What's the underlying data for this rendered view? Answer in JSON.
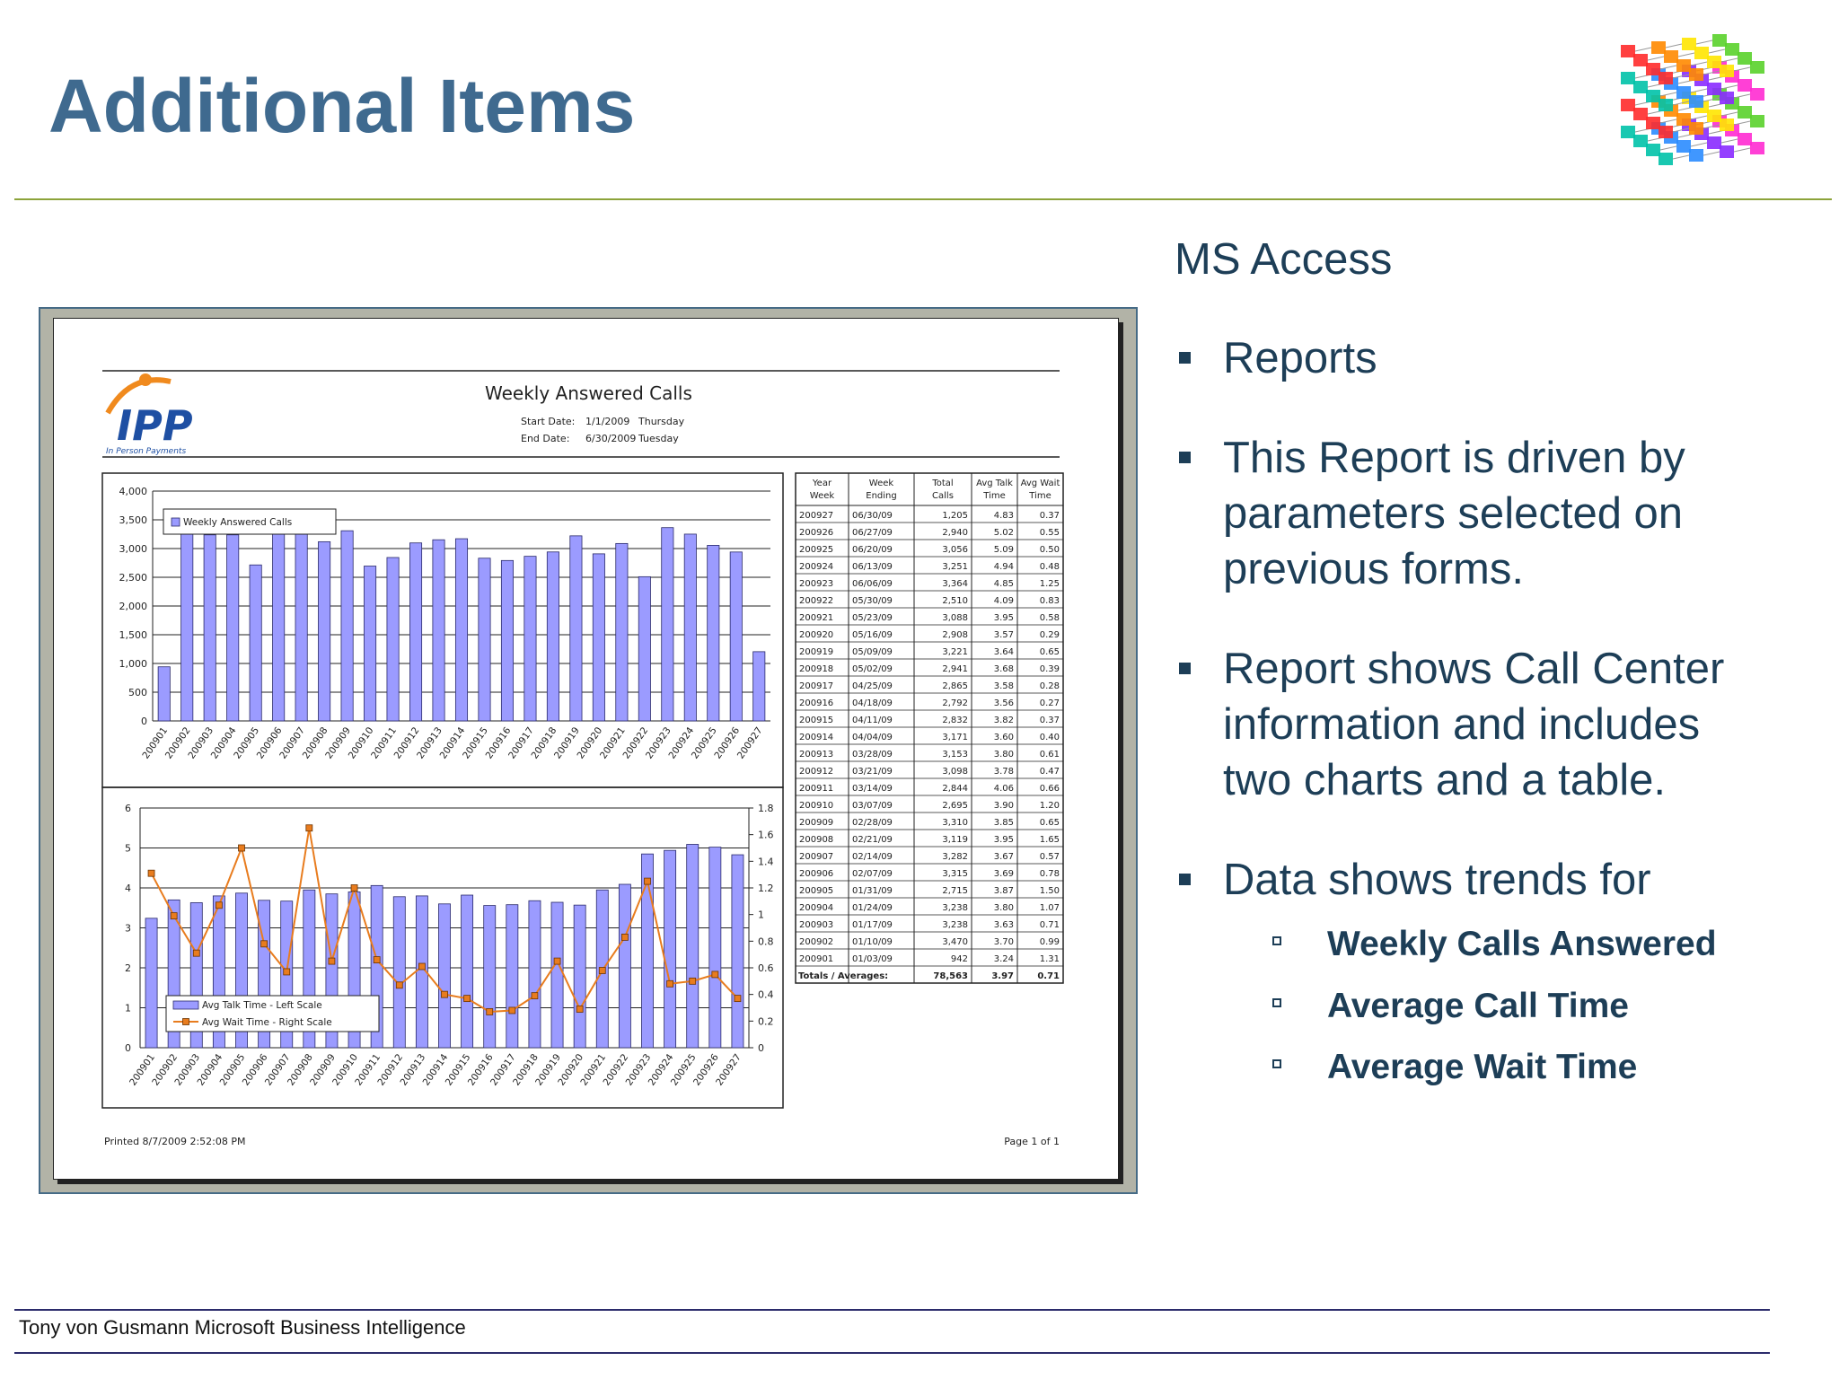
{
  "title": "Additional Items",
  "heading": "MS Access",
  "bullets": [
    {
      "lines": [
        "Reports"
      ]
    },
    {
      "lines": [
        "This Report is driven by",
        "parameters selected on",
        "previous forms."
      ]
    },
    {
      "lines": [
        "Report shows Call Center",
        "information and includes",
        "two charts and a table."
      ]
    },
    {
      "lines": [
        "Data shows trends for"
      ]
    }
  ],
  "sub_bullets": [
    "Weekly Calls Answered",
    "Average Call Time",
    "Average Wait Time"
  ],
  "footer": "Tony von Gusmann Microsoft Business Intelligence",
  "report": {
    "title": "Weekly Answered Calls",
    "start_label": "Start Date:",
    "start_date": "1/1/2009",
    "start_day": "Thursday",
    "end_label": "End Date:",
    "end_date": "6/30/2009",
    "end_day": "Tuesday",
    "logo_text": "IPP",
    "logo_tagline": "In Person Payments",
    "printed": "Printed 8/7/2009 2:52:08 PM",
    "page": "Page 1 of 1",
    "table_headers": [
      [
        "Year",
        "Week"
      ],
      [
        "Week",
        "Ending"
      ],
      [
        "Total",
        "Calls"
      ],
      [
        "Avg Talk",
        "Time"
      ],
      [
        "Avg Wait",
        "Time"
      ]
    ],
    "table_rows": [
      [
        "200927",
        "06/30/09",
        "1,205",
        "4.83",
        "0.37"
      ],
      [
        "200926",
        "06/27/09",
        "2,940",
        "5.02",
        "0.55"
      ],
      [
        "200925",
        "06/20/09",
        "3,056",
        "5.09",
        "0.50"
      ],
      [
        "200924",
        "06/13/09",
        "3,251",
        "4.94",
        "0.48"
      ],
      [
        "200923",
        "06/06/09",
        "3,364",
        "4.85",
        "1.25"
      ],
      [
        "200922",
        "05/30/09",
        "2,510",
        "4.09",
        "0.83"
      ],
      [
        "200921",
        "05/23/09",
        "3,088",
        "3.95",
        "0.58"
      ],
      [
        "200920",
        "05/16/09",
        "2,908",
        "3.57",
        "0.29"
      ],
      [
        "200919",
        "05/09/09",
        "3,221",
        "3.64",
        "0.65"
      ],
      [
        "200918",
        "05/02/09",
        "2,941",
        "3.68",
        "0.39"
      ],
      [
        "200917",
        "04/25/09",
        "2,865",
        "3.58",
        "0.28"
      ],
      [
        "200916",
        "04/18/09",
        "2,792",
        "3.56",
        "0.27"
      ],
      [
        "200915",
        "04/11/09",
        "2,832",
        "3.82",
        "0.37"
      ],
      [
        "200914",
        "04/04/09",
        "3,171",
        "3.60",
        "0.40"
      ],
      [
        "200913",
        "03/28/09",
        "3,153",
        "3.80",
        "0.61"
      ],
      [
        "200912",
        "03/21/09",
        "3,098",
        "3.78",
        "0.47"
      ],
      [
        "200911",
        "03/14/09",
        "2,844",
        "4.06",
        "0.66"
      ],
      [
        "200910",
        "03/07/09",
        "2,695",
        "3.90",
        "1.20"
      ],
      [
        "200909",
        "02/28/09",
        "3,310",
        "3.85",
        "0.65"
      ],
      [
        "200908",
        "02/21/09",
        "3,119",
        "3.95",
        "1.65"
      ],
      [
        "200907",
        "02/14/09",
        "3,282",
        "3.67",
        "0.57"
      ],
      [
        "200906",
        "02/07/09",
        "3,315",
        "3.69",
        "0.78"
      ],
      [
        "200905",
        "01/31/09",
        "2,715",
        "3.87",
        "1.50"
      ],
      [
        "200904",
        "01/24/09",
        "3,238",
        "3.80",
        "1.07"
      ],
      [
        "200903",
        "01/17/09",
        "3,238",
        "3.63",
        "0.71"
      ],
      [
        "200902",
        "01/10/09",
        "3,470",
        "3.70",
        "0.99"
      ],
      [
        "200901",
        "01/03/09",
        "942",
        "3.24",
        "1.31"
      ]
    ],
    "totals": [
      "Totals / Averages:",
      "78,563",
      "3.97",
      "0.71"
    ]
  },
  "chart_data": [
    {
      "type": "bar",
      "categories": [
        "200901",
        "200902",
        "200903",
        "200904",
        "200905",
        "200906",
        "200907",
        "200908",
        "200909",
        "200910",
        "200911",
        "200912",
        "200913",
        "200914",
        "200915",
        "200916",
        "200917",
        "200918",
        "200919",
        "200920",
        "200921",
        "200922",
        "200923",
        "200924",
        "200925",
        "200926",
        "200927"
      ],
      "series": [
        {
          "name": "Weekly Answered Calls",
          "values": [
            942,
            3470,
            3238,
            3238,
            2715,
            3315,
            3282,
            3119,
            3310,
            2695,
            2844,
            3098,
            3153,
            3171,
            2832,
            2792,
            2865,
            2941,
            3221,
            2908,
            3088,
            2510,
            3364,
            3251,
            3056,
            2940,
            1205
          ]
        }
      ],
      "ylim": [
        0,
        4000
      ],
      "yticks": [
        "0",
        "500",
        "1,000",
        "1,500",
        "2,000",
        "2,500",
        "3,000",
        "3,500",
        "4,000"
      ],
      "color": "#9b9bff",
      "legend": "top-left"
    },
    {
      "type": "bar",
      "categories": [
        "200901",
        "200902",
        "200903",
        "200904",
        "200905",
        "200906",
        "200907",
        "200908",
        "200909",
        "200910",
        "200911",
        "200912",
        "200913",
        "200914",
        "200915",
        "200916",
        "200917",
        "200918",
        "200919",
        "200920",
        "200921",
        "200922",
        "200923",
        "200924",
        "200925",
        "200926",
        "200927"
      ],
      "series": [
        {
          "name": "Avg Talk Time - Left Scale",
          "type": "bar",
          "axis": "left",
          "values": [
            3.24,
            3.7,
            3.63,
            3.8,
            3.87,
            3.69,
            3.67,
            3.95,
            3.85,
            3.9,
            4.06,
            3.78,
            3.8,
            3.6,
            3.82,
            3.56,
            3.58,
            3.68,
            3.64,
            3.57,
            3.95,
            4.09,
            4.85,
            4.94,
            5.09,
            5.02,
            4.83
          ]
        },
        {
          "name": "Avg Wait Time - Right Scale",
          "type": "line",
          "axis": "right",
          "values": [
            1.31,
            0.99,
            0.71,
            1.07,
            1.5,
            0.78,
            0.57,
            1.65,
            0.65,
            1.2,
            0.66,
            0.47,
            0.61,
            0.4,
            0.37,
            0.27,
            0.28,
            0.39,
            0.65,
            0.29,
            0.58,
            0.83,
            1.25,
            0.48,
            0.5,
            0.55,
            0.37
          ]
        }
      ],
      "ylim": [
        0,
        6
      ],
      "yticks": [
        "0",
        "1",
        "2",
        "3",
        "4",
        "5",
        "6"
      ],
      "y2lim": [
        0,
        1.8
      ],
      "y2ticks": [
        "0",
        "0.2",
        "0.4",
        "0.6",
        "0.8",
        "1",
        "1.2",
        "1.4",
        "1.6",
        "1.8"
      ],
      "colors": {
        "bar": "#9b9bff",
        "line": "#e87c1e"
      },
      "legend": "bottom-left"
    }
  ]
}
